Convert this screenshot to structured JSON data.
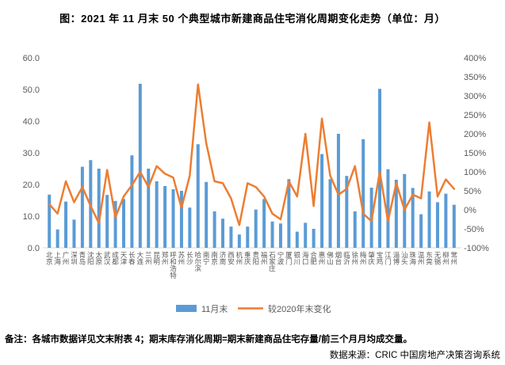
{
  "title": "图：2021 年 11 月末 50 个典型城市新建商品住宅消化周期变化走势（单位：月）",
  "footnote": "备注：各城市数据详见文末附表 4；期末库存消化周期=期末新建商品住宅存量/前三个月月均成交量。",
  "source": "数据来源：CRIC 中国房地产决策咨询系统",
  "colors": {
    "bar": "#5B9BD5",
    "line": "#ED7D31",
    "axis_text": "#595959",
    "axis_line": "#D9D9D9"
  },
  "chart_data": {
    "type": "bar",
    "subtype": "bar-line-combo",
    "grid": false,
    "legend_position": "bottom",
    "categories": [
      "北京",
      "上海",
      "广州",
      "深圳",
      "青岛",
      "沈阳",
      "太原",
      "武汉",
      "成都",
      "天津",
      "长春",
      "大连",
      "兰州",
      "昆明",
      "郑州",
      "呼和浩特",
      "苏州",
      "长沙",
      "哈尔滨",
      "南宁",
      "南京",
      "济南",
      "西安",
      "杭州",
      "重庆",
      "贵阳",
      "福州",
      "石家庄",
      "宁波",
      "厦门",
      "银川",
      "海口",
      "合肥",
      "惠州",
      "佛山",
      "烟台",
      "临沂",
      "徐州",
      "梅州",
      "肇庆",
      "宝鸡",
      "江门",
      "淄博",
      "汕头",
      "珠海",
      "温州",
      "东莞",
      "无锡",
      "柳州",
      "常州"
    ],
    "series": [
      {
        "name": "11月末",
        "type": "bar",
        "axis": "left",
        "unit": "月",
        "values": [
          16.8,
          5.8,
          14.6,
          8.9,
          25.6,
          27.7,
          25.0,
          16.7,
          14.8,
          15.4,
          29.2,
          51.8,
          25.0,
          21.0,
          19.5,
          18.5,
          18.0,
          12.7,
          32.7,
          20.8,
          11.5,
          9.2,
          6.7,
          4.2,
          6.7,
          12.1,
          15.4,
          8.3,
          7.7,
          21.7,
          5.1,
          7.9,
          6.0,
          29.6,
          21.7,
          36.0,
          22.7,
          11.5,
          34.3,
          19.0,
          50.2,
          24.8,
          21.5,
          23.3,
          18.9,
          10.6,
          17.8,
          14.4,
          17.1,
          13.6
        ]
      },
      {
        "name": "较2020年末变化",
        "type": "line",
        "axis": "right",
        "unit": "%",
        "values": [
          15,
          -10,
          75,
          20,
          60,
          10,
          -35,
          105,
          -20,
          35,
          65,
          100,
          60,
          115,
          95,
          85,
          5,
          90,
          330,
          175,
          75,
          70,
          30,
          -40,
          70,
          60,
          35,
          -10,
          -25,
          75,
          35,
          200,
          10,
          240,
          90,
          40,
          55,
          115,
          -10,
          -30,
          100,
          -30,
          70,
          0,
          40,
          30,
          230,
          35,
          80,
          55
        ]
      }
    ],
    "left_axis": {
      "min": 0,
      "max": 60,
      "step": 10,
      "tick_labels": [
        "0.0",
        "10.0",
        "20.0",
        "30.0",
        "40.0",
        "50.0",
        "60.0"
      ]
    },
    "right_axis": {
      "min": -100,
      "max": 400,
      "step": 50,
      "tick_labels": [
        "-100%",
        "-50%",
        "0%",
        "50%",
        "100%",
        "150%",
        "200%",
        "250%",
        "300%",
        "350%",
        "400%"
      ]
    }
  }
}
